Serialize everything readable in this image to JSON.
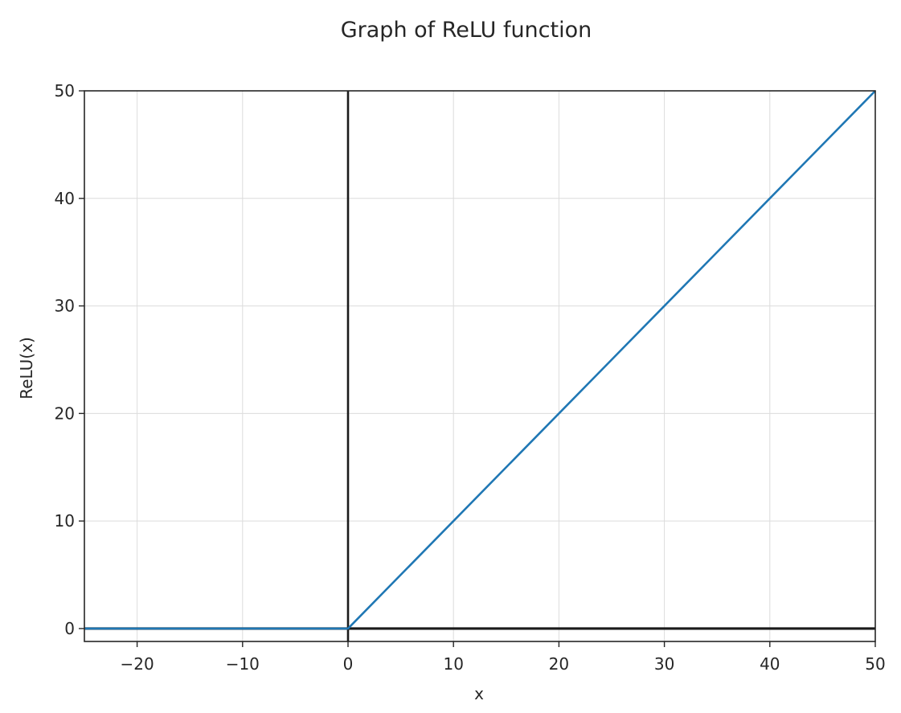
{
  "chart_data": {
    "type": "line",
    "title": "Graph of ReLU function",
    "xlabel": "x",
    "ylabel": "ReLU(x)",
    "xlim": [
      -25,
      50
    ],
    "ylim": [
      -1.2,
      50
    ],
    "x_ticks": [
      -20,
      -10,
      0,
      10,
      20,
      30,
      40,
      50
    ],
    "x_tick_labels": [
      "−20",
      "−10",
      "0",
      "10",
      "20",
      "30",
      "40",
      "50"
    ],
    "y_ticks": [
      0,
      10,
      20,
      30,
      40,
      50
    ],
    "y_tick_labels": [
      "0",
      "10",
      "20",
      "30",
      "40",
      "50"
    ],
    "grid": true,
    "reference_lines": {
      "vertical_at_x": 0,
      "horizontal_at_y": 0
    },
    "series": [
      {
        "x": [
          -25,
          0,
          50
        ],
        "y": [
          0,
          0,
          50
        ],
        "color": "#1f77b4"
      }
    ],
    "colors": {
      "line": "#1f77b4",
      "reference": "#1a1a1a",
      "grid": "#dcdcdc",
      "frame": "#262626",
      "text": "#262626"
    }
  }
}
